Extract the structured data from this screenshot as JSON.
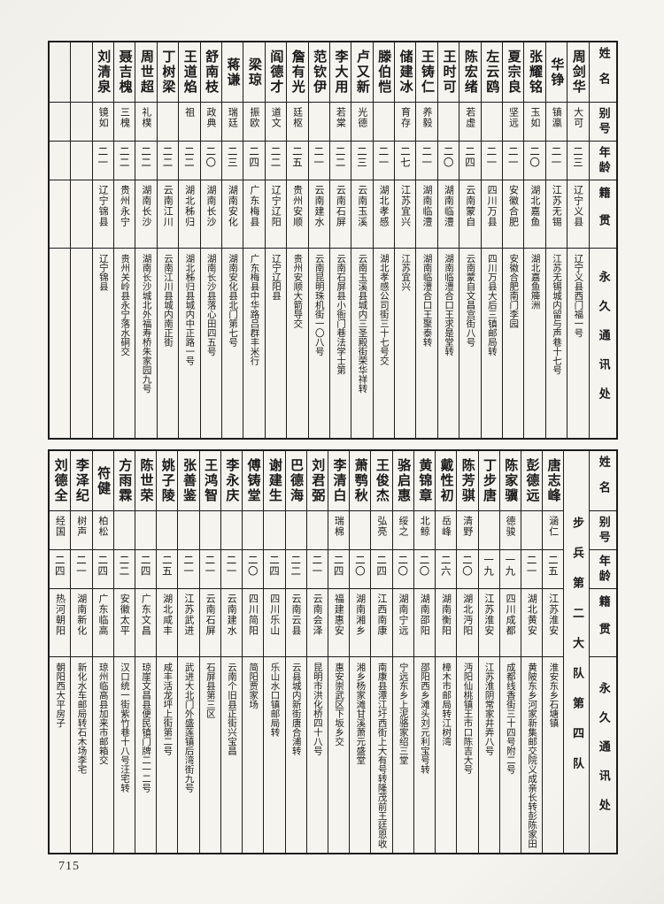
{
  "page": {
    "number": "715"
  },
  "tables": [
    {
      "headers": {
        "name": "姓名",
        "alias": "别号",
        "age": "年龄",
        "native": "籍贯",
        "address": "永久通讯处"
      },
      "entries": [
        {
          "name": "周剑华",
          "alias": "大可",
          "age": "二三",
          "native": "辽宁义县",
          "address": "辽宁义县西门福一号"
        },
        {
          "name": "华铮",
          "alias": "镇瀛",
          "age": "二一",
          "native": "江苏无锡",
          "address": "江苏无锡城内留与声巷十七号"
        },
        {
          "name": "张耀铭",
          "alias": "玉如",
          "age": "二〇",
          "native": "湖北嘉鱼",
          "address": "湖北嘉鱼簰洲"
        },
        {
          "name": "夏宗良",
          "alias": "坚远",
          "age": "二一",
          "native": "安徽合肥",
          "address": "安徽合肥南门李园"
        },
        {
          "name": "左云鸥",
          "alias": "",
          "age": "二一",
          "native": "四川万县",
          "address": "四川万县大后三镇邮局转"
        },
        {
          "name": "陈宏绪",
          "alias": "若虚",
          "age": "二四",
          "native": "云南蒙自",
          "address": "云南蒙自文昌宫街八号"
        },
        {
          "name": "王时可",
          "alias": "",
          "age": "二〇",
          "native": "湖南临澧",
          "address": "湖南临澧合口王求是堂转"
        },
        {
          "name": "王铸仁",
          "alias": "养毅",
          "age": "二一",
          "native": "湖南临澧",
          "address": "湖南临澧合口王聚泰转"
        },
        {
          "name": "储建冰",
          "alias": "育存",
          "age": "二七",
          "native": "江苏宜兴",
          "address": "江苏宜兴"
        },
        {
          "name": "滕伯恺",
          "alias": "",
          "age": "二一",
          "native": "湖北孝感",
          "address": "湖北孝感公司街三十七号交"
        },
        {
          "name": "卢又新",
          "alias": "光德",
          "age": "二三",
          "native": "云南玉溪",
          "address": "云南玉溪县城内三圣殿街荣华祥转"
        },
        {
          "name": "李大用",
          "alias": "若棠",
          "age": "二二",
          "native": "云南石屏",
          "address": "云南石屏县小衙门巷法学士第"
        },
        {
          "name": "范钦伊",
          "alias": "",
          "age": "二一",
          "native": "云南建水",
          "address": "云南昆明珠机街一〇八号"
        },
        {
          "name": "詹有光",
          "alias": "廷枢",
          "age": "二五",
          "native": "贵州安顺",
          "address": "贵州安顺大箭导交"
        },
        {
          "name": "阎德才",
          "alias": "道文",
          "age": "二二",
          "native": "辽宁辽阳",
          "address": "辽宁辽阳县"
        },
        {
          "name": "梁琼",
          "alias": "振欧",
          "age": "二四",
          "native": "广东梅县",
          "address": "广东梅县中华路吕群丰米行"
        },
        {
          "name": "蒋谦",
          "alias": "瑞廷",
          "age": "二三",
          "native": "湖南安化",
          "address": "湖南安化县北门第七号"
        },
        {
          "name": "舒南枝",
          "alias": "政典",
          "age": "二〇",
          "native": "湖南长沙",
          "address": "湖南长沙县落心田四五号"
        },
        {
          "name": "王道焰",
          "alias": "祖",
          "age": "二二",
          "native": "湖北秭归",
          "address": "湖北秭归县城内中正路一号"
        },
        {
          "name": "丁树梁",
          "alias": "",
          "age": "二二",
          "native": "云南江川",
          "address": "云南江川县城内南正街"
        },
        {
          "name": "周世超",
          "alias": "礼樸",
          "age": "二二",
          "native": "湖南长沙",
          "address": "湖南长沙城北外福寿桥朱家园九号"
        },
        {
          "name": "聂吉槐",
          "alias": "三槐",
          "age": "二二",
          "native": "贵州永宁",
          "address": "贵州关岭县永宁落水硐交"
        },
        {
          "name": "刘清泉",
          "alias": "镜如",
          "age": "二一",
          "native": "辽宁锦县",
          "address": "辽宁锦县"
        },
        {
          "name": "",
          "alias": "",
          "age": "",
          "native": "",
          "address": ""
        },
        {
          "name": "",
          "alias": "",
          "age": "",
          "native": "",
          "address": ""
        }
      ]
    },
    {
      "unit": "步兵第二大队第四队",
      "headers": {
        "name": "姓名",
        "alias": "别号",
        "age": "年龄",
        "native": "籍贯",
        "address": "永久通讯处"
      },
      "entries": [
        {
          "name": "唐志峰",
          "alias": "涵仁",
          "age": "二五",
          "native": "江苏淮安",
          "address": "淮安东乡石塘镇"
        },
        {
          "name": "彭德远",
          "alias": "",
          "age": "二一",
          "native": "湖北黄安",
          "address": "黄陂东乡河家新集邮交院义成亲长转彭陈家田"
        },
        {
          "name": "陈家骥",
          "alias": "德骏",
          "age": "一九",
          "native": "四川成都",
          "address": "成都线香街三十四号附二号"
        },
        {
          "name": "丁步唐",
          "alias": "",
          "age": "一九",
          "native": "江苏淮安",
          "address": "江苏淮阴常家井弄八号"
        },
        {
          "name": "陈芳骐",
          "alias": "清野",
          "age": "二〇",
          "native": "湖北沔阳",
          "address": "沔阳仙桃镇王市口陈吉大号"
        },
        {
          "name": "戴性初",
          "alias": "岳峰",
          "age": "二六",
          "native": "湖南衡阳",
          "address": "樟木市邮局转江树湾"
        },
        {
          "name": "黄锦章",
          "alias": "北鲸",
          "age": "二〇",
          "native": "湖南邵阳",
          "address": "邵阳西乡滩头刘元利宝号转"
        },
        {
          "name": "骆启惠",
          "alias": "绥之",
          "age": "二〇",
          "native": "湖南宁远",
          "address": "宁远东乡上泥骆家绍三堂"
        },
        {
          "name": "王俊杰",
          "alias": "弘亮",
          "age": "二四",
          "native": "江西南康",
          "address": "南康县潭江圩西街上大有号转隆茂前王廷恩收"
        },
        {
          "name": "萧鹗秋",
          "alias": "",
          "age": "二〇",
          "native": "湖南湘乡",
          "address": "湘乡杨家滩甘溪萧元盛堂"
        },
        {
          "name": "李清白",
          "alias": "瑞棉",
          "age": "二四",
          "native": "福建惠安",
          "address": "惠安崇武区下坂乡交"
        },
        {
          "name": "刘君弼",
          "alias": "",
          "age": "二一",
          "native": "云南会泽",
          "address": "昆明市洪化桥四十八号"
        },
        {
          "name": "巴德海",
          "alias": "",
          "age": "二二",
          "native": "云南云县",
          "address": "云县城内新街唐合浦转"
        },
        {
          "name": "谢建生",
          "alias": "",
          "age": "二四",
          "native": "四川乐山",
          "address": "乐山水口镇邮局转"
        },
        {
          "name": "傅铸堂",
          "alias": "",
          "age": "二〇",
          "native": "四川简阳",
          "address": "简阳贾家场"
        },
        {
          "name": "李永庆",
          "alias": "",
          "age": "二一",
          "native": "云南建水",
          "address": "云南个旧县正街兴宝昌"
        },
        {
          "name": "王鸿智",
          "alias": "",
          "age": "二一",
          "native": "云南石屏",
          "address": "石屏县第三区"
        },
        {
          "name": "张善鉴",
          "alias": "",
          "age": "二一",
          "native": "江苏武进",
          "address": "武进大北门外盛莲镇后湾街九号"
        },
        {
          "name": "姚子陵",
          "alias": "",
          "age": "二五",
          "native": "湖北咸丰",
          "address": "咸丰活龙坪上街第二号"
        },
        {
          "name": "陈世荣",
          "alias": "",
          "age": "二四",
          "native": "广东文昌",
          "address": "琼崖文昌县便民镇门牌二一二号"
        },
        {
          "name": "方雨霖",
          "alias": "",
          "age": "二二",
          "native": "安徽太平",
          "address": "汉口统一街紫竹巷十八号汪宅转"
        },
        {
          "name": "符健",
          "alias": "柏松",
          "age": "二四",
          "native": "广东临高",
          "address": "琼州临高县加来市邮箱交"
        },
        {
          "name": "李泽纪",
          "alias": "树声",
          "age": "二一",
          "native": "湖南新化",
          "address": "新化水车邮局转石木场李宅"
        },
        {
          "name": "刘德全",
          "alias": "经国",
          "age": "二四",
          "native": "热河朝阳",
          "address": "朝阳西大平房子"
        }
      ]
    }
  ]
}
